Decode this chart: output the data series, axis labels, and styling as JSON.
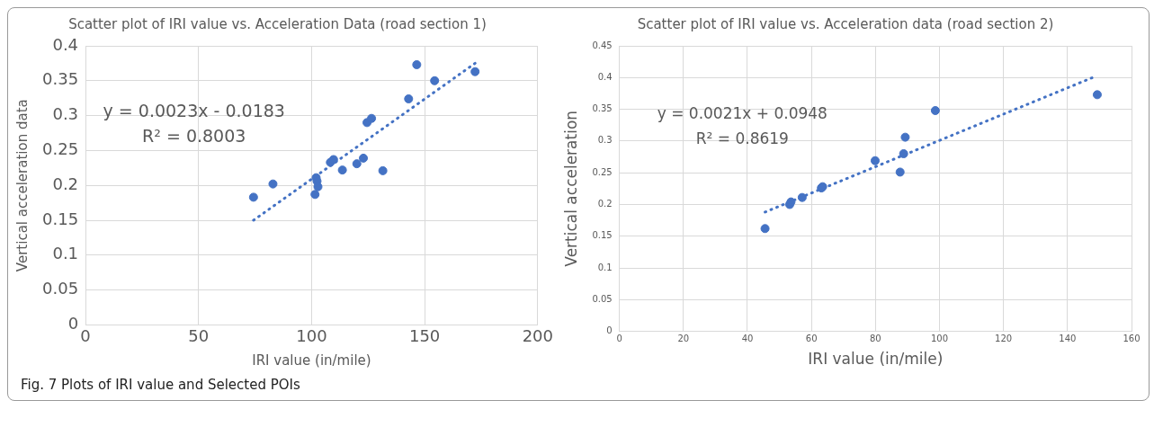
{
  "chart_data": [
    {
      "type": "scatter",
      "title": "Scatter plot of IRI value vs. Acceleration Data (road section 1)",
      "xlabel": "IRI value (in/mile)",
      "ylabel": "Vertical acceleration data",
      "xlim": [
        0,
        200
      ],
      "xticks": [
        0,
        50,
        100,
        150,
        200
      ],
      "ylim": [
        0,
        0.4
      ],
      "yticks": [
        0,
        0.05,
        0.1,
        0.15,
        0.2,
        0.25,
        0.3,
        0.35,
        0.4
      ],
      "grid": true,
      "marker": "circle",
      "series": [
        {
          "type": "scatter",
          "color": "#4472c4",
          "x": [
            74.3,
            82.9,
            101.5,
            102,
            102.4,
            102.8,
            108.3,
            109.7,
            113.6,
            120,
            122.9,
            124.5,
            126.5,
            131.5,
            142.9,
            146.5,
            154.4,
            172.3
          ],
          "values": [
            0.183,
            0.202,
            0.187,
            0.211,
            0.206,
            0.198,
            0.233,
            0.237,
            0.222,
            0.231,
            0.239,
            0.29,
            0.296,
            0.221,
            0.324,
            0.373,
            0.35,
            0.363
          ]
        },
        {
          "type": "line",
          "color": "#4472c4",
          "line_style": "dotted",
          "marker": "none",
          "x": [
            74.3,
            172.3
          ],
          "values": [
            0.15,
            0.375
          ]
        }
      ],
      "annotations": [
        "y = 0.0023x - 0.0183",
        "R² = 0.8003",
        "Fig. 7  Plots of IRI value and Selected POIs"
      ]
    },
    {
      "type": "scatter",
      "title": "Scatter plot of IRI value vs. Acceleration data (road section 2)",
      "xlabel": "IRI value (in/mile)",
      "ylabel": "Vertical acceleration",
      "xlim": [
        0,
        160
      ],
      "xticks": [
        0,
        20,
        40,
        60,
        80,
        100,
        120,
        140,
        160
      ],
      "ylim": [
        0,
        0.45
      ],
      "yticks": [
        0,
        0.05,
        0.1,
        0.15,
        0.2,
        0.25,
        0.3,
        0.35,
        0.4,
        0.45
      ],
      "grid": true,
      "marker": "circle",
      "series": [
        {
          "type": "scatter",
          "color": "#4472c4",
          "x": [
            45.5,
            53.2,
            53.6,
            57.1,
            63.1,
            63.5,
            79.9,
            87.7,
            88.8,
            89.3,
            98.7,
            149.3
          ],
          "values": [
            0.162,
            0.2,
            0.204,
            0.211,
            0.226,
            0.228,
            0.269,
            0.251,
            0.28,
            0.306,
            0.348,
            0.373
          ]
        },
        {
          "type": "line",
          "color": "#4472c4",
          "line_style": "dotted",
          "marker": "none",
          "x": [
            45.5,
            148.3
          ],
          "values": [
            0.188,
            0.401
          ]
        }
      ],
      "annotations": [
        "y = 0.0021x + 0.0948",
        "R² = 0.8619"
      ]
    }
  ]
}
